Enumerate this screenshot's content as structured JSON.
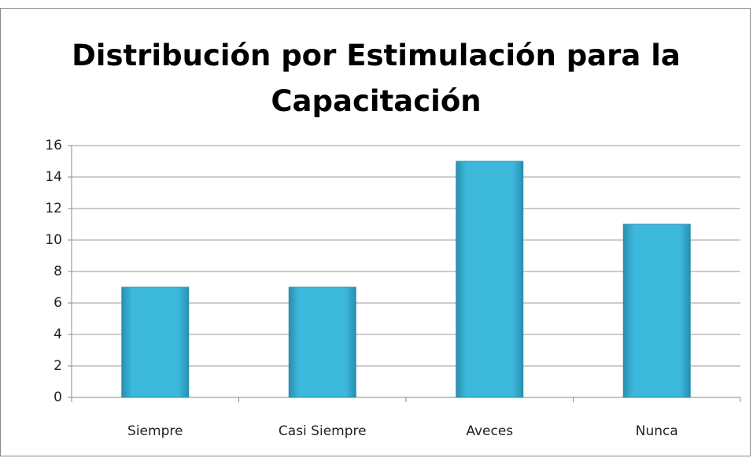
{
  "chart_data": {
    "type": "bar",
    "title": "Distribución por Estimulación para la Capacitación",
    "categories": [
      "Siempre",
      "Casi Siempre",
      "Aveces",
      "Nunca"
    ],
    "values": [
      7,
      7,
      15,
      11
    ],
    "color": "#3bb8dc",
    "ylim": [
      0,
      16
    ],
    "yticks": [
      0,
      2,
      4,
      6,
      8,
      10,
      12,
      14,
      16
    ],
    "grid": true
  }
}
